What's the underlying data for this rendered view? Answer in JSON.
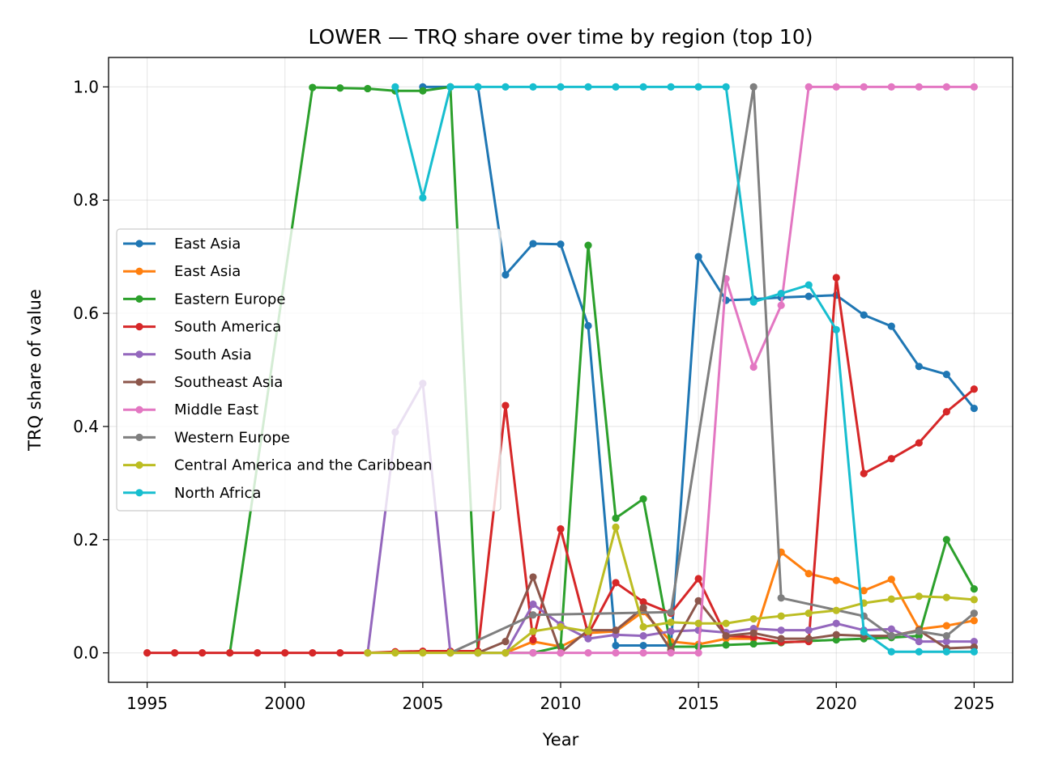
{
  "chart_data": {
    "type": "line",
    "title": "LOWER — TRQ share over time by region (top 10)",
    "xlabel": "Year",
    "ylabel": "TRQ share of value",
    "xlim": [
      1993.6,
      2026.4
    ],
    "ylim": [
      -0.052,
      1.052
    ],
    "xticks": [
      1995,
      2000,
      2005,
      2010,
      2015,
      2020,
      2025
    ],
    "yticks": [
      0.0,
      0.2,
      0.4,
      0.6,
      0.8,
      1.0
    ],
    "ytick_labels": [
      "0.0",
      "0.2",
      "0.4",
      "0.6",
      "0.8",
      "1.0"
    ],
    "grid": true,
    "legend_position": "center-left",
    "series": [
      {
        "name": "East Asia",
        "color": "#1f77b4",
        "points": [
          [
            2005,
            1.0
          ],
          [
            2006,
            1.0
          ],
          [
            2007,
            1.0
          ],
          [
            2008,
            0.668
          ],
          [
            2009,
            0.723
          ],
          [
            2010,
            0.722
          ],
          [
            2011,
            0.578
          ],
          [
            2012,
            0.013
          ],
          [
            2013,
            0.013
          ],
          [
            2014,
            0.013
          ],
          [
            2015,
            0.7
          ],
          [
            2016,
            0.623
          ],
          [
            2017,
            0.625
          ],
          [
            2018,
            0.628
          ],
          [
            2019,
            0.63
          ],
          [
            2020,
            0.632
          ],
          [
            2021,
            0.597
          ],
          [
            2022,
            0.577
          ],
          [
            2023,
            0.506
          ],
          [
            2024,
            0.492
          ],
          [
            2025,
            0.432
          ]
        ]
      },
      {
        "name": "East Asia",
        "color": "#ff7f0e",
        "points": [
          [
            2008,
            0.0
          ],
          [
            2009,
            0.02
          ],
          [
            2010,
            0.011
          ],
          [
            2011,
            0.035
          ],
          [
            2012,
            0.038
          ],
          [
            2013,
            0.073
          ],
          [
            2014,
            0.02
          ],
          [
            2015,
            0.015
          ],
          [
            2016,
            0.025
          ],
          [
            2017,
            0.025
          ],
          [
            2018,
            0.178
          ],
          [
            2019,
            0.14
          ],
          [
            2020,
            0.128
          ],
          [
            2021,
            0.11
          ],
          [
            2022,
            0.13
          ],
          [
            2023,
            0.042
          ],
          [
            2024,
            0.048
          ],
          [
            2025,
            0.057
          ]
        ]
      },
      {
        "name": "Eastern Europe",
        "color": "#2ca02c",
        "points": [
          [
            1998,
            0.0
          ],
          [
            2001,
            0.999
          ],
          [
            2002,
            0.998
          ],
          [
            2003,
            0.997
          ],
          [
            2004,
            0.993
          ],
          [
            2005,
            0.993
          ],
          [
            2006,
            1.0
          ],
          [
            2007,
            0.0
          ],
          [
            2008,
            0.0
          ],
          [
            2009,
            0.0
          ],
          [
            2010,
            0.011
          ],
          [
            2011,
            0.72
          ],
          [
            2012,
            0.238
          ],
          [
            2013,
            0.272
          ],
          [
            2014,
            0.011
          ],
          [
            2015,
            0.011
          ],
          [
            2016,
            0.014
          ],
          [
            2017,
            0.016
          ],
          [
            2018,
            0.018
          ],
          [
            2019,
            0.021
          ],
          [
            2020,
            0.023
          ],
          [
            2021,
            0.025
          ],
          [
            2022,
            0.027
          ],
          [
            2023,
            0.03
          ],
          [
            2024,
            0.2
          ],
          [
            2025,
            0.113
          ]
        ]
      },
      {
        "name": "South America",
        "color": "#d62728",
        "points": [
          [
            1995,
            0.0
          ],
          [
            1996,
            0.0
          ],
          [
            1997,
            0.0
          ],
          [
            1998,
            0.0
          ],
          [
            1999,
            0.0
          ],
          [
            2000,
            0.0
          ],
          [
            2001,
            0.0
          ],
          [
            2002,
            0.0
          ],
          [
            2003,
            0.0
          ],
          [
            2004,
            0.002
          ],
          [
            2005,
            0.003
          ],
          [
            2006,
            0.003
          ],
          [
            2007,
            0.003
          ],
          [
            2008,
            0.437
          ],
          [
            2009,
            0.023
          ],
          [
            2010,
            0.219
          ],
          [
            2011,
            0.033
          ],
          [
            2012,
            0.124
          ],
          [
            2013,
            0.09
          ],
          [
            2014,
            0.07
          ],
          [
            2015,
            0.131
          ],
          [
            2016,
            0.03
          ],
          [
            2017,
            0.028
          ],
          [
            2018,
            0.019
          ],
          [
            2019,
            0.02
          ],
          [
            2020,
            0.663
          ],
          [
            2021,
            0.317
          ],
          [
            2022,
            0.343
          ],
          [
            2023,
            0.371
          ],
          [
            2024,
            0.426
          ],
          [
            2025,
            0.466
          ]
        ]
      },
      {
        "name": "South Asia",
        "color": "#9467bd",
        "points": [
          [
            2003,
            0.0
          ],
          [
            2004,
            0.39
          ],
          [
            2005,
            0.476
          ],
          [
            2006,
            0.0
          ],
          [
            2007,
            0.0
          ],
          [
            2008,
            0.0
          ],
          [
            2009,
            0.086
          ],
          [
            2010,
            0.05
          ],
          [
            2011,
            0.025
          ],
          [
            2012,
            0.032
          ],
          [
            2013,
            0.03
          ],
          [
            2014,
            0.038
          ],
          [
            2015,
            0.04
          ],
          [
            2016,
            0.036
          ],
          [
            2017,
            0.043
          ],
          [
            2018,
            0.04
          ],
          [
            2019,
            0.04
          ],
          [
            2020,
            0.052
          ],
          [
            2021,
            0.04
          ],
          [
            2022,
            0.042
          ],
          [
            2023,
            0.02
          ],
          [
            2024,
            0.02
          ],
          [
            2025,
            0.02
          ]
        ]
      },
      {
        "name": "Southeast Asia",
        "color": "#8c564b",
        "points": [
          [
            2007,
            0.0
          ],
          [
            2008,
            0.02
          ],
          [
            2009,
            0.134
          ],
          [
            2010,
            0.0
          ],
          [
            2011,
            0.04
          ],
          [
            2012,
            0.04
          ],
          [
            2013,
            0.08
          ],
          [
            2014,
            0.005
          ],
          [
            2015,
            0.092
          ],
          [
            2016,
            0.03
          ],
          [
            2017,
            0.035
          ],
          [
            2018,
            0.025
          ],
          [
            2019,
            0.025
          ],
          [
            2020,
            0.032
          ],
          [
            2021,
            0.03
          ],
          [
            2022,
            0.03
          ],
          [
            2023,
            0.04
          ],
          [
            2024,
            0.008
          ],
          [
            2025,
            0.01
          ]
        ]
      },
      {
        "name": "Middle East",
        "color": "#e377c2",
        "points": [
          [
            2008,
            0.0
          ],
          [
            2009,
            0.0
          ],
          [
            2010,
            0.0
          ],
          [
            2011,
            0.0
          ],
          [
            2012,
            0.0
          ],
          [
            2013,
            0.0
          ],
          [
            2014,
            0.0
          ],
          [
            2015,
            0.0
          ],
          [
            2016,
            0.661
          ],
          [
            2017,
            0.505
          ],
          [
            2018,
            0.614
          ],
          [
            2019,
            1.0
          ],
          [
            2020,
            1.0
          ],
          [
            2021,
            1.0
          ],
          [
            2022,
            1.0
          ],
          [
            2023,
            1.0
          ],
          [
            2024,
            1.0
          ],
          [
            2025,
            1.0
          ]
        ]
      },
      {
        "name": "Western Europe",
        "color": "#7f7f7f",
        "points": [
          [
            2006,
            0.0
          ],
          [
            2009,
            0.067
          ],
          [
            2014,
            0.072
          ],
          [
            2017,
            1.0
          ],
          [
            2018,
            0.097
          ],
          [
            2021,
            0.065
          ],
          [
            2022,
            0.03
          ],
          [
            2023,
            0.038
          ],
          [
            2024,
            0.03
          ],
          [
            2025,
            0.07
          ]
        ]
      },
      {
        "name": "Central America and the Caribbean",
        "color": "#bcbd22",
        "points": [
          [
            2003,
            0.0
          ],
          [
            2004,
            0.0
          ],
          [
            2005,
            0.0
          ],
          [
            2006,
            0.0
          ],
          [
            2007,
            0.0
          ],
          [
            2008,
            0.0
          ],
          [
            2009,
            0.038
          ],
          [
            2010,
            0.046
          ],
          [
            2011,
            0.038
          ],
          [
            2012,
            0.222
          ],
          [
            2013,
            0.046
          ],
          [
            2014,
            0.054
          ],
          [
            2015,
            0.052
          ],
          [
            2016,
            0.052
          ],
          [
            2017,
            0.06
          ],
          [
            2018,
            0.065
          ],
          [
            2019,
            0.07
          ],
          [
            2020,
            0.075
          ],
          [
            2021,
            0.088
          ],
          [
            2022,
            0.095
          ],
          [
            2023,
            0.1
          ],
          [
            2024,
            0.098
          ],
          [
            2025,
            0.094
          ]
        ]
      },
      {
        "name": "North Africa",
        "color": "#17becf",
        "points": [
          [
            2004,
            1.0
          ],
          [
            2005,
            0.804
          ],
          [
            2006,
            1.0
          ],
          [
            2007,
            1.0
          ],
          [
            2008,
            1.0
          ],
          [
            2009,
            1.0
          ],
          [
            2010,
            1.0
          ],
          [
            2011,
            1.0
          ],
          [
            2012,
            1.0
          ],
          [
            2013,
            1.0
          ],
          [
            2014,
            1.0
          ],
          [
            2015,
            1.0
          ],
          [
            2016,
            1.0
          ],
          [
            2017,
            0.62
          ],
          [
            2018,
            0.635
          ],
          [
            2019,
            0.65
          ],
          [
            2020,
            0.571
          ],
          [
            2021,
            0.037
          ],
          [
            2022,
            0.002
          ],
          [
            2023,
            0.002
          ],
          [
            2024,
            0.002
          ],
          [
            2025,
            0.002
          ]
        ]
      }
    ]
  }
}
